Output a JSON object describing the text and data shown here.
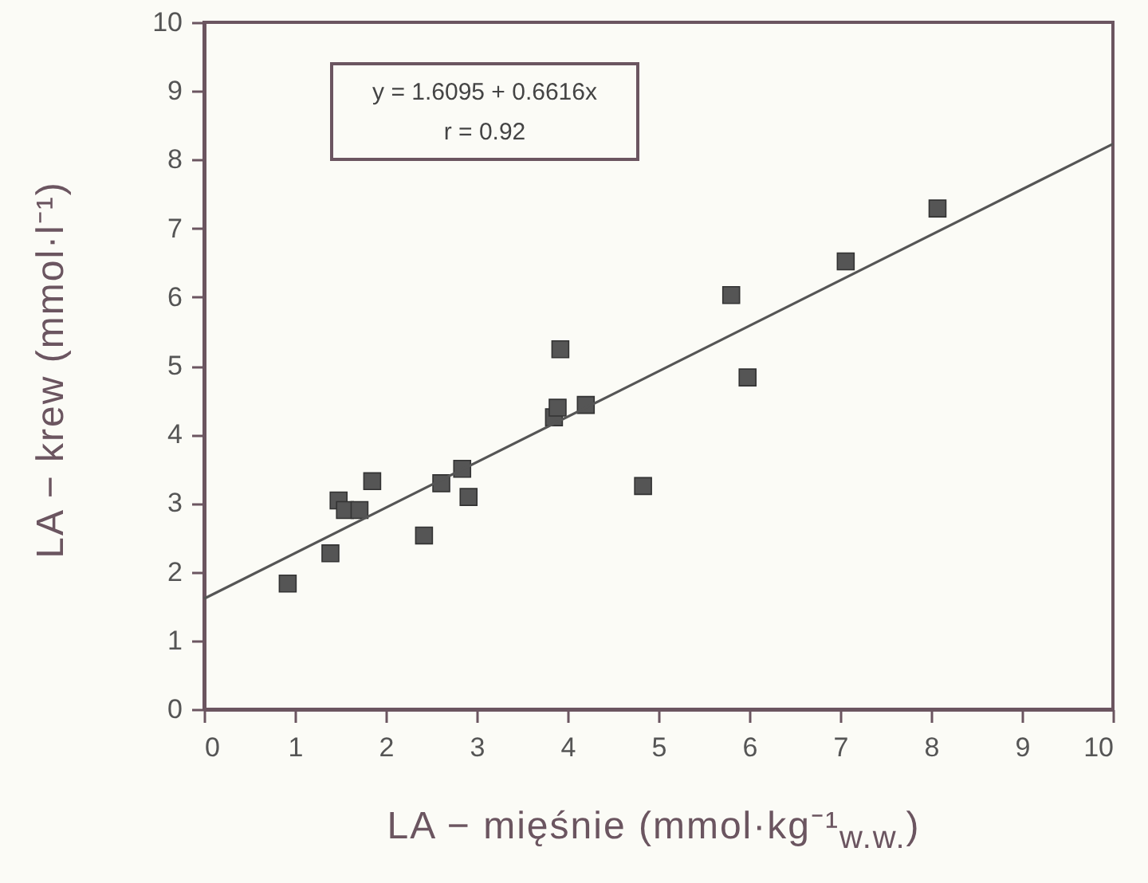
{
  "chart_data": {
    "type": "scatter",
    "xlabel": "LA − mięśnie (mmol·kg⁻¹$_{w.w.}$)",
    "ylabel": "LA − krew (mmol·l⁻¹)",
    "annotations": [
      "y = 1.6095 + 0.6616x",
      "r = 0.92"
    ],
    "xlim": [
      0,
      10
    ],
    "ylim": [
      0,
      10
    ],
    "xticks": [
      0,
      1,
      2,
      3,
      4,
      5,
      6,
      7,
      8,
      9,
      10
    ],
    "yticks": [
      0,
      1,
      2,
      3,
      4,
      5,
      6,
      7,
      8,
      9,
      10
    ],
    "grid": false,
    "series": [
      {
        "color": "#555555",
        "marker": "square",
        "x": [
          0.92,
          1.39,
          1.48,
          1.55,
          1.71,
          1.85,
          2.42,
          2.61,
          2.84,
          2.91,
          3.85,
          3.89,
          3.92,
          4.2,
          4.83,
          5.8,
          5.98,
          7.06,
          8.07
        ],
        "values": [
          1.83,
          2.27,
          3.04,
          2.9,
          2.9,
          3.32,
          2.53,
          3.29,
          3.5,
          3.09,
          4.25,
          4.39,
          5.24,
          4.43,
          3.25,
          6.03,
          4.83,
          6.52,
          7.29
        ]
      },
      {
        "type": "line",
        "color": "#555555",
        "line_style": "solid",
        "marker": "none",
        "x": [
          0,
          10
        ],
        "values": [
          1.61,
          8.23
        ]
      }
    ]
  }
}
